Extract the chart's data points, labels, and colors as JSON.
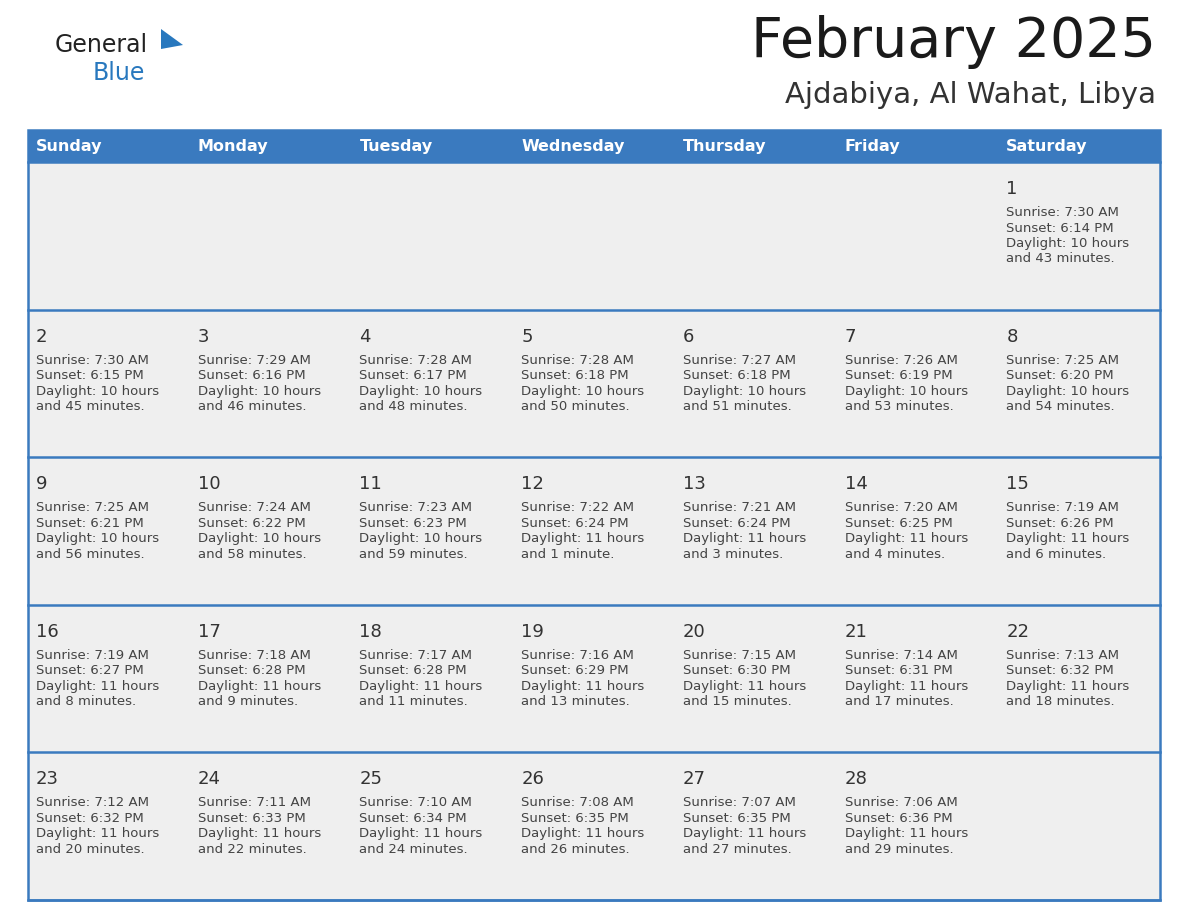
{
  "title": "February 2025",
  "subtitle": "Ajdabiya, Al Wahat, Libya",
  "header_bg_color": "#3a7abf",
  "header_text_color": "#ffffff",
  "cell_bg_color": "#efefef",
  "cell_bg_white": "#ffffff",
  "border_color": "#3a7abf",
  "title_color": "#1a1a1a",
  "subtitle_color": "#333333",
  "day_num_color": "#333333",
  "day_text_color": "#444444",
  "weekdays": [
    "Sunday",
    "Monday",
    "Tuesday",
    "Wednesday",
    "Thursday",
    "Friday",
    "Saturday"
  ],
  "days": [
    {
      "day": 1,
      "col": 6,
      "row": 0,
      "sunrise": "7:30 AM",
      "sunset": "6:14 PM",
      "daylight_hours": 10,
      "daylight_minutes": 43
    },
    {
      "day": 2,
      "col": 0,
      "row": 1,
      "sunrise": "7:30 AM",
      "sunset": "6:15 PM",
      "daylight_hours": 10,
      "daylight_minutes": 45
    },
    {
      "day": 3,
      "col": 1,
      "row": 1,
      "sunrise": "7:29 AM",
      "sunset": "6:16 PM",
      "daylight_hours": 10,
      "daylight_minutes": 46
    },
    {
      "day": 4,
      "col": 2,
      "row": 1,
      "sunrise": "7:28 AM",
      "sunset": "6:17 PM",
      "daylight_hours": 10,
      "daylight_minutes": 48
    },
    {
      "day": 5,
      "col": 3,
      "row": 1,
      "sunrise": "7:28 AM",
      "sunset": "6:18 PM",
      "daylight_hours": 10,
      "daylight_minutes": 50
    },
    {
      "day": 6,
      "col": 4,
      "row": 1,
      "sunrise": "7:27 AM",
      "sunset": "6:18 PM",
      "daylight_hours": 10,
      "daylight_minutes": 51
    },
    {
      "day": 7,
      "col": 5,
      "row": 1,
      "sunrise": "7:26 AM",
      "sunset": "6:19 PM",
      "daylight_hours": 10,
      "daylight_minutes": 53
    },
    {
      "day": 8,
      "col": 6,
      "row": 1,
      "sunrise": "7:25 AM",
      "sunset": "6:20 PM",
      "daylight_hours": 10,
      "daylight_minutes": 54
    },
    {
      "day": 9,
      "col": 0,
      "row": 2,
      "sunrise": "7:25 AM",
      "sunset": "6:21 PM",
      "daylight_hours": 10,
      "daylight_minutes": 56
    },
    {
      "day": 10,
      "col": 1,
      "row": 2,
      "sunrise": "7:24 AM",
      "sunset": "6:22 PM",
      "daylight_hours": 10,
      "daylight_minutes": 58
    },
    {
      "day": 11,
      "col": 2,
      "row": 2,
      "sunrise": "7:23 AM",
      "sunset": "6:23 PM",
      "daylight_hours": 10,
      "daylight_minutes": 59
    },
    {
      "day": 12,
      "col": 3,
      "row": 2,
      "sunrise": "7:22 AM",
      "sunset": "6:24 PM",
      "daylight_hours": 11,
      "daylight_minutes": 1
    },
    {
      "day": 13,
      "col": 4,
      "row": 2,
      "sunrise": "7:21 AM",
      "sunset": "6:24 PM",
      "daylight_hours": 11,
      "daylight_minutes": 3
    },
    {
      "day": 14,
      "col": 5,
      "row": 2,
      "sunrise": "7:20 AM",
      "sunset": "6:25 PM",
      "daylight_hours": 11,
      "daylight_minutes": 4
    },
    {
      "day": 15,
      "col": 6,
      "row": 2,
      "sunrise": "7:19 AM",
      "sunset": "6:26 PM",
      "daylight_hours": 11,
      "daylight_minutes": 6
    },
    {
      "day": 16,
      "col": 0,
      "row": 3,
      "sunrise": "7:19 AM",
      "sunset": "6:27 PM",
      "daylight_hours": 11,
      "daylight_minutes": 8
    },
    {
      "day": 17,
      "col": 1,
      "row": 3,
      "sunrise": "7:18 AM",
      "sunset": "6:28 PM",
      "daylight_hours": 11,
      "daylight_minutes": 9
    },
    {
      "day": 18,
      "col": 2,
      "row": 3,
      "sunrise": "7:17 AM",
      "sunset": "6:28 PM",
      "daylight_hours": 11,
      "daylight_minutes": 11
    },
    {
      "day": 19,
      "col": 3,
      "row": 3,
      "sunrise": "7:16 AM",
      "sunset": "6:29 PM",
      "daylight_hours": 11,
      "daylight_minutes": 13
    },
    {
      "day": 20,
      "col": 4,
      "row": 3,
      "sunrise": "7:15 AM",
      "sunset": "6:30 PM",
      "daylight_hours": 11,
      "daylight_minutes": 15
    },
    {
      "day": 21,
      "col": 5,
      "row": 3,
      "sunrise": "7:14 AM",
      "sunset": "6:31 PM",
      "daylight_hours": 11,
      "daylight_minutes": 17
    },
    {
      "day": 22,
      "col": 6,
      "row": 3,
      "sunrise": "7:13 AM",
      "sunset": "6:32 PM",
      "daylight_hours": 11,
      "daylight_minutes": 18
    },
    {
      "day": 23,
      "col": 0,
      "row": 4,
      "sunrise": "7:12 AM",
      "sunset": "6:32 PM",
      "daylight_hours": 11,
      "daylight_minutes": 20
    },
    {
      "day": 24,
      "col": 1,
      "row": 4,
      "sunrise": "7:11 AM",
      "sunset": "6:33 PM",
      "daylight_hours": 11,
      "daylight_minutes": 22
    },
    {
      "day": 25,
      "col": 2,
      "row": 4,
      "sunrise": "7:10 AM",
      "sunset": "6:34 PM",
      "daylight_hours": 11,
      "daylight_minutes": 24
    },
    {
      "day": 26,
      "col": 3,
      "row": 4,
      "sunrise": "7:08 AM",
      "sunset": "6:35 PM",
      "daylight_hours": 11,
      "daylight_minutes": 26
    },
    {
      "day": 27,
      "col": 4,
      "row": 4,
      "sunrise": "7:07 AM",
      "sunset": "6:35 PM",
      "daylight_hours": 11,
      "daylight_minutes": 27
    },
    {
      "day": 28,
      "col": 5,
      "row": 4,
      "sunrise": "7:06 AM",
      "sunset": "6:36 PM",
      "daylight_hours": 11,
      "daylight_minutes": 29
    }
  ],
  "logo_general_color": "#222222",
  "logo_blue_color": "#2878be",
  "logo_triangle_color": "#2878be",
  "fig_width": 11.88,
  "fig_height": 9.18,
  "dpi": 100
}
